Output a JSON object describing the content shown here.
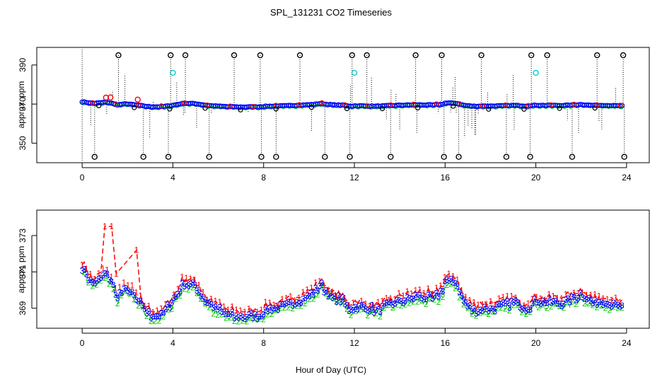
{
  "figure": {
    "title": "SPL_131231  CO2 Timeseries",
    "xlabel": "Hour of Day (UTC)"
  },
  "chart_data": [
    {
      "type": "scatter",
      "title": "SPL_131231  CO2 Timeseries",
      "xlabel": "",
      "ylabel": "approx. ppm",
      "xlim": [
        -2,
        25
      ],
      "ylim": [
        340,
        399
      ],
      "xticks": [
        0,
        4,
        8,
        12,
        16,
        20,
        24
      ],
      "yticks": [
        350,
        370,
        390
      ],
      "series_colors": {
        "main": "#0000ff",
        "secondary": "#00cc00",
        "outlier": "#ff0000",
        "calibration": "#00cccc",
        "range": "#000000"
      },
      "x_start": 0.0,
      "x_end": 23.8,
      "base_profile": [
        [
          0.0,
          371.2
        ],
        [
          0.5,
          370.3
        ],
        [
          1.0,
          370.9
        ],
        [
          1.3,
          370.5
        ],
        [
          1.5,
          369.6
        ],
        [
          2.0,
          370.1
        ],
        [
          2.5,
          369.3
        ],
        [
          3.0,
          368.6
        ],
        [
          3.5,
          368.6
        ],
        [
          3.9,
          369.2
        ],
        [
          4.5,
          370.4
        ],
        [
          5.0,
          370.2
        ],
        [
          5.5,
          369.3
        ],
        [
          6.0,
          368.9
        ],
        [
          6.5,
          368.6
        ],
        [
          7.0,
          368.5
        ],
        [
          7.8,
          368.6
        ],
        [
          8.2,
          368.9
        ],
        [
          9.0,
          369.1
        ],
        [
          9.5,
          369.4
        ],
        [
          10.2,
          369.8
        ],
        [
          10.5,
          370.3
        ],
        [
          11.0,
          369.6
        ],
        [
          11.5,
          369.4
        ],
        [
          11.8,
          368.9
        ],
        [
          12.0,
          369.1
        ],
        [
          13.0,
          368.9
        ],
        [
          14.0,
          369.4
        ],
        [
          14.8,
          369.6
        ],
        [
          15.5,
          369.5
        ],
        [
          15.7,
          369.7
        ],
        [
          15.9,
          370.0
        ],
        [
          16.0,
          370.5
        ],
        [
          16.5,
          370.4
        ],
        [
          16.8,
          369.4
        ],
        [
          17.2,
          368.9
        ],
        [
          18.0,
          369.0
        ],
        [
          18.6,
          369.1
        ],
        [
          19.0,
          369.3
        ],
        [
          19.6,
          369.0
        ],
        [
          20.0,
          369.4
        ],
        [
          20.5,
          369.3
        ],
        [
          21.0,
          369.3
        ],
        [
          21.5,
          369.4
        ],
        [
          22.0,
          369.8
        ],
        [
          22.5,
          369.3
        ],
        [
          23.0,
          369.4
        ],
        [
          23.5,
          369.1
        ],
        [
          23.8,
          369.1
        ]
      ],
      "outlier_points": [
        [
          1.05,
          373.3
        ],
        [
          1.25,
          373.4
        ],
        [
          2.45,
          372.3
        ]
      ],
      "max_markers": [
        [
          1.6,
          395
        ],
        [
          3.9,
          395
        ],
        [
          4.55,
          395
        ],
        [
          6.7,
          395
        ],
        [
          7.85,
          395
        ],
        [
          9.6,
          395
        ],
        [
          11.9,
          395
        ],
        [
          12.55,
          395
        ],
        [
          14.7,
          395
        ],
        [
          15.85,
          395
        ],
        [
          17.6,
          395
        ],
        [
          19.8,
          395
        ],
        [
          20.5,
          395
        ],
        [
          22.7,
          395
        ],
        [
          23.85,
          395
        ]
      ],
      "min_markers": [
        [
          0.55,
          343
        ],
        [
          2.7,
          343
        ],
        [
          3.8,
          343
        ],
        [
          5.6,
          343
        ],
        [
          7.9,
          343
        ],
        [
          8.55,
          343
        ],
        [
          10.7,
          343
        ],
        [
          11.8,
          343
        ],
        [
          13.6,
          343
        ],
        [
          15.95,
          343
        ],
        [
          16.6,
          343
        ],
        [
          18.7,
          343
        ],
        [
          19.75,
          343
        ],
        [
          21.6,
          343
        ],
        [
          23.9,
          343
        ]
      ],
      "calibration_points": [
        [
          4.0,
          386
        ],
        [
          12.0,
          386
        ],
        [
          20.0,
          386
        ]
      ]
    },
    {
      "type": "line",
      "title": "",
      "xlabel": "Hour of Day (UTC)",
      "ylabel": "approx. ppm",
      "xlim": [
        -2,
        25
      ],
      "ylim": [
        367.9,
        374.4
      ],
      "xticks": [
        0,
        4,
        8,
        12,
        16,
        20,
        24
      ],
      "yticks": [
        369,
        371,
        373
      ],
      "series": [
        {
          "name": "1",
          "color": "#ff0000",
          "offset": 0.3
        },
        {
          "name": "2",
          "color": "#00cc00",
          "offset": -0.2
        },
        {
          "name": "3",
          "color": "#0000ff",
          "offset": 0.0
        }
      ],
      "spikes": [
        [
          1.0,
          373.5
        ],
        [
          1.3,
          373.5
        ],
        [
          1.5,
          370.9
        ],
        [
          2.4,
          372.2
        ],
        [
          2.6,
          369.5
        ]
      ]
    }
  ]
}
